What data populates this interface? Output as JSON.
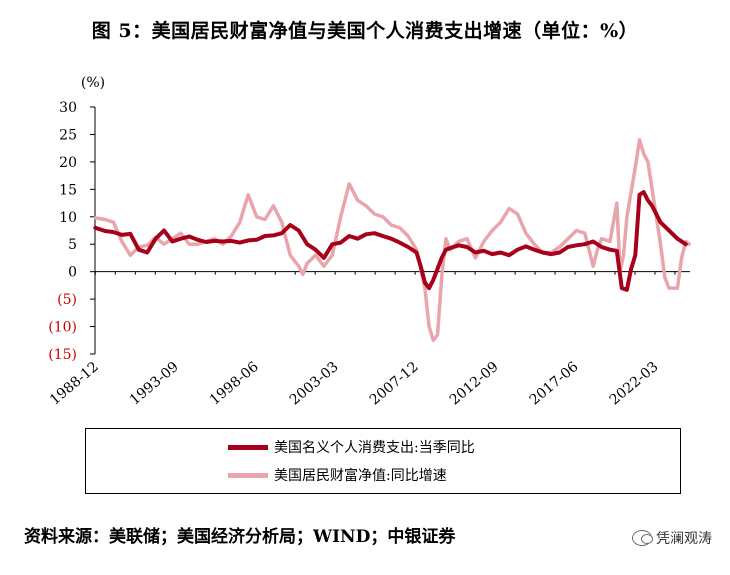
{
  "figure": {
    "title": "图 5：美国居民财富净值与美国个人消费支出增速（单位：%）",
    "source": "资料来源：美联储；美国经济分析局；WIND；中银证券",
    "watermark": "凭澜观涛"
  },
  "chart_data": {
    "type": "line",
    "ylabel": "(%)",
    "ylim": [
      -15,
      30
    ],
    "yticks": [
      30,
      25,
      20,
      15,
      10,
      5,
      0,
      -5,
      -10,
      -15
    ],
    "ytick_labels": [
      "30",
      "25",
      "20",
      "15",
      "10",
      "5",
      "0",
      "(5)",
      "(10)",
      "(15)"
    ],
    "x_tick_labels": [
      "1988-12",
      "1993-09",
      "1998-06",
      "2003-03",
      "2007-12",
      "2012-09",
      "2017-06",
      "2022-03"
    ],
    "xlim": [
      1988.9,
      2024.25
    ],
    "grid": false,
    "legend_position": "bottom",
    "colors": {
      "pce": "#A6001A",
      "wealth": "#E8A5AC",
      "negative_label": "#D00000"
    },
    "series": [
      {
        "name": "美国名义个人消费支出:当季同比",
        "x": [
          1988.92,
          1989.5,
          1990.0,
          1990.5,
          1991.0,
          1991.5,
          1992.0,
          1992.5,
          1993.0,
          1993.5,
          1994.0,
          1994.5,
          1995.0,
          1995.5,
          1996.0,
          1996.5,
          1997.0,
          1997.5,
          1998.0,
          1998.5,
          1999.0,
          1999.5,
          2000.0,
          2000.5,
          2001.0,
          2001.5,
          2002.0,
          2002.5,
          2003.0,
          2003.5,
          2004.0,
          2004.5,
          2005.0,
          2005.5,
          2006.0,
          2006.5,
          2007.0,
          2007.5,
          2008.0,
          2008.25,
          2008.5,
          2008.75,
          2009.0,
          2009.25,
          2009.5,
          2009.75,
          2010.0,
          2010.5,
          2011.0,
          2011.5,
          2012.0,
          2012.5,
          2013.0,
          2013.5,
          2014.0,
          2014.5,
          2015.0,
          2015.5,
          2016.0,
          2016.5,
          2017.0,
          2017.5,
          2018.0,
          2018.5,
          2019.0,
          2019.5,
          2019.9,
          2020.2,
          2020.5,
          2020.75,
          2021.0,
          2021.25,
          2021.5,
          2021.75,
          2022.0,
          2022.5,
          2023.0,
          2023.5,
          2024.0
        ],
        "values": [
          8.0,
          7.4,
          7.2,
          6.7,
          6.9,
          4.0,
          3.5,
          6.0,
          7.5,
          5.5,
          6.0,
          6.4,
          5.8,
          5.4,
          5.6,
          5.5,
          5.6,
          5.3,
          5.7,
          5.8,
          6.5,
          6.6,
          7.0,
          8.5,
          7.5,
          5.0,
          4.0,
          2.5,
          5.0,
          5.3,
          6.5,
          6.0,
          6.8,
          7.0,
          6.5,
          6.0,
          5.3,
          4.5,
          3.5,
          1.0,
          -2.0,
          -3.0,
          -1.5,
          0.5,
          2.5,
          4.0,
          4.3,
          4.8,
          4.5,
          3.5,
          3.8,
          3.2,
          3.5,
          3.0,
          4.0,
          4.6,
          4.0,
          3.5,
          3.2,
          3.5,
          4.5,
          4.8,
          5.0,
          5.5,
          4.5,
          4.0,
          3.8,
          -3.0,
          -3.3,
          0.5,
          3.0,
          14.0,
          14.5,
          13.0,
          12.0,
          9.0,
          7.5,
          6.0,
          5.0
        ]
      },
      {
        "name": "美国居民财富净值:同比增速",
        "x": [
          1988.92,
          1989.5,
          1990.0,
          1990.5,
          1991.0,
          1991.5,
          1992.0,
          1992.5,
          1993.0,
          1993.5,
          1994.0,
          1994.5,
          1995.0,
          1995.5,
          1996.0,
          1996.5,
          1997.0,
          1997.5,
          1998.0,
          1998.5,
          1999.0,
          1999.5,
          2000.0,
          2000.5,
          2001.0,
          2001.25,
          2001.5,
          2002.0,
          2002.5,
          2003.0,
          2003.5,
          2004.0,
          2004.5,
          2005.0,
          2005.5,
          2006.0,
          2006.5,
          2007.0,
          2007.5,
          2008.0,
          2008.5,
          2008.75,
          2009.0,
          2009.25,
          2009.5,
          2009.75,
          2010.0,
          2010.5,
          2011.0,
          2011.5,
          2012.0,
          2012.5,
          2013.0,
          2013.5,
          2014.0,
          2014.5,
          2015.0,
          2015.5,
          2016.0,
          2016.5,
          2017.0,
          2017.5,
          2018.0,
          2018.5,
          2018.75,
          2019.0,
          2019.5,
          2019.9,
          2020.1,
          2020.3,
          2020.5,
          2021.0,
          2021.25,
          2021.5,
          2021.75,
          2022.0,
          2022.5,
          2022.75,
          2023.0,
          2023.5,
          2023.75,
          2024.0,
          2024.2
        ],
        "values": [
          9.8,
          9.5,
          9.0,
          5.5,
          3.0,
          4.5,
          4.8,
          6.2,
          5.0,
          6.0,
          7.0,
          5.0,
          5.0,
          5.5,
          6.0,
          5.0,
          6.5,
          9.0,
          14.0,
          10.0,
          9.5,
          12.0,
          9.0,
          3.0,
          1.0,
          -0.5,
          1.5,
          3.0,
          1.0,
          3.0,
          10.0,
          16.0,
          13.0,
          12.0,
          10.5,
          10.0,
          8.5,
          8.0,
          6.5,
          4.0,
          -3.0,
          -10.0,
          -12.5,
          -11.5,
          -1.0,
          6.0,
          4.0,
          5.5,
          6.0,
          2.5,
          5.5,
          7.5,
          9.0,
          11.5,
          10.5,
          7.0,
          5.0,
          3.5,
          3.5,
          4.5,
          6.0,
          7.5,
          7.0,
          1.0,
          4.0,
          6.0,
          5.5,
          12.5,
          0.0,
          3.0,
          10.0,
          19.0,
          24.0,
          21.5,
          20.0,
          15.0,
          5.0,
          -1.0,
          -3.0,
          -3.0,
          2.5,
          5.5,
          5.0
        ]
      }
    ]
  }
}
